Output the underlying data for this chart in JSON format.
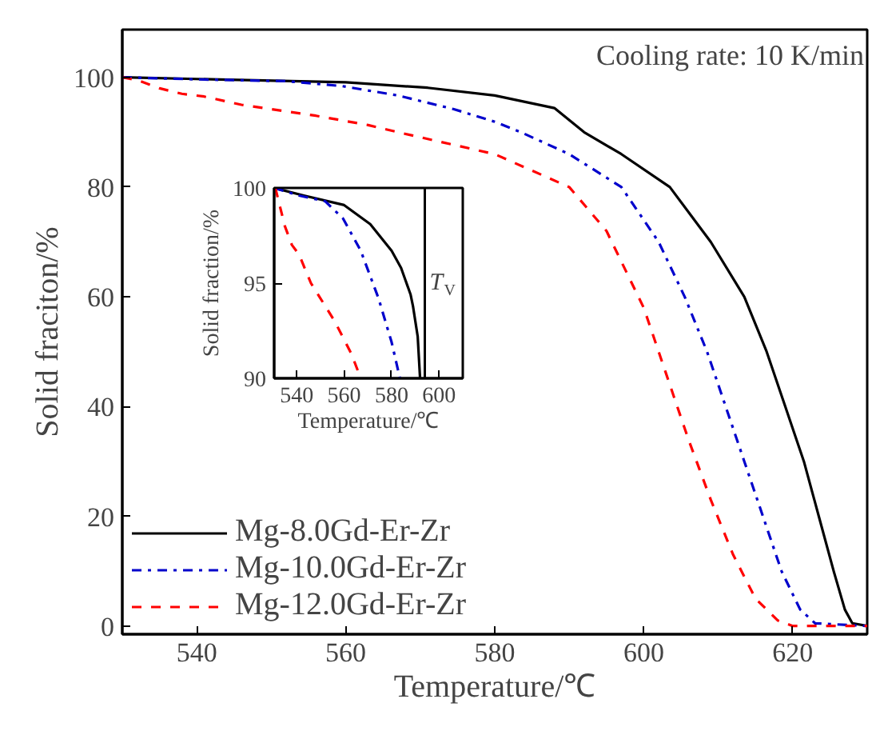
{
  "chart_data": [
    {
      "type": "line",
      "xlabel": "Temperature/℃",
      "ylabel": "Solid fraciton/%",
      "xlim": [
        530,
        630
      ],
      "ylim": [
        -1.5,
        108.7
      ],
      "xticks": [
        540,
        560,
        580,
        600,
        620
      ],
      "yticks": [
        0,
        20,
        40,
        60,
        80,
        100
      ],
      "grid": false,
      "legend": "bottom left",
      "annotations": [
        "Cooling rate: 10 K/min"
      ],
      "series": [
        {
          "name": "Mg-8.0Gd-Er-Zr",
          "color": "#000000",
          "line_style": "solid",
          "x": [
            530,
            543,
            560,
            571,
            580,
            588,
            592,
            597,
            603.5,
            609,
            613.5,
            616.5,
            619,
            621.5,
            623.5,
            625.5,
            627,
            628,
            630
          ],
          "values": [
            100,
            99.6,
            99.1,
            98.1,
            96.7,
            94.4,
            90,
            86,
            80,
            70,
            60,
            50,
            40,
            30,
            20,
            10,
            3,
            0.5,
            0
          ]
        },
        {
          "name": "Mg-10.0Gd-Er-Zr",
          "color": "#0000cc",
          "line_style": "dashdot",
          "x": [
            530,
            541,
            552,
            559.5,
            567,
            574.5,
            580,
            583.5,
            590,
            597,
            602,
            605.5,
            608.5,
            611,
            613.5,
            616,
            618.5,
            621,
            623,
            630
          ],
          "values": [
            100,
            99.6,
            99.3,
            98.4,
            96.7,
            94.2,
            91.9,
            90,
            86,
            80,
            70,
            60,
            50,
            40,
            30,
            20,
            10,
            3,
            0.5,
            0
          ]
        },
        {
          "name": "Mg-12.0Gd-Er-Zr",
          "color": "#ff0000",
          "line_style": "dashed",
          "x": [
            530,
            532,
            535,
            538,
            541,
            546,
            551,
            556,
            563,
            567,
            580,
            590,
            595,
            600,
            603,
            606,
            609,
            612,
            615,
            618,
            620,
            630
          ],
          "values": [
            100,
            99.5,
            98,
            97,
            96.5,
            95,
            94,
            93,
            91.3,
            90,
            86,
            80,
            72,
            58,
            46,
            34,
            23,
            13,
            5,
            1,
            0,
            0
          ]
        }
      ]
    },
    {
      "type": "line",
      "xlabel": "Temperature/℃",
      "ylabel": "Solid fraction/%",
      "xlim": [
        530.5,
        610
      ],
      "ylim": [
        90,
        100
      ],
      "xticks": [
        540,
        560,
        580,
        600
      ],
      "yticks": [
        90,
        95,
        100
      ],
      "grid": false,
      "ref_lines": [
        {
          "axis": "x",
          "value": 594,
          "label": "T$_{V}$",
          "color": "#000000"
        }
      ],
      "series": [
        {
          "color": "#000000",
          "line_style": "solid",
          "x": [
            530.5,
            543,
            560,
            571,
            580,
            584,
            588,
            589,
            591,
            592
          ],
          "values": [
            100,
            99.6,
            99.1,
            98.1,
            96.7,
            95.8,
            94.4,
            93.8,
            92.2,
            90
          ]
        },
        {
          "color": "#0000cc",
          "line_style": "dashdot",
          "x": [
            530.5,
            541,
            552,
            559.5,
            567,
            574.5,
            580,
            583.5
          ],
          "values": [
            100,
            99.6,
            99.3,
            98.4,
            96.7,
            94.2,
            91.9,
            90
          ]
        },
        {
          "color": "#ff0000",
          "line_style": "dashed",
          "x": [
            531,
            535,
            538,
            541,
            546,
            551,
            556,
            563,
            567
          ],
          "values": [
            100,
            98,
            97,
            96.5,
            95,
            94,
            93,
            91.3,
            90
          ]
        }
      ]
    }
  ]
}
